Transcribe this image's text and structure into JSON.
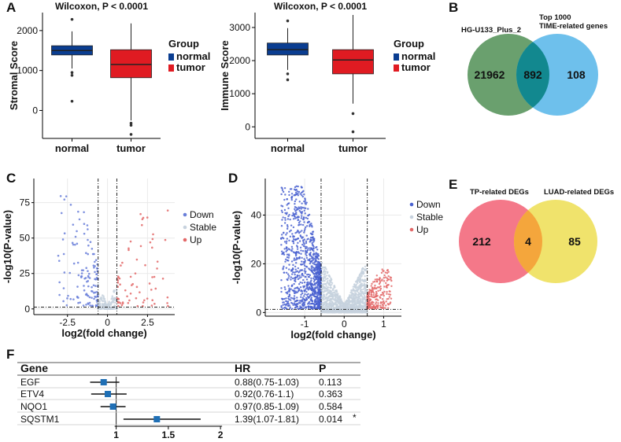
{
  "panel_letters": [
    "A",
    "B",
    "C",
    "D",
    "E",
    "F"
  ],
  "chart_data": [
    {
      "panel": "A",
      "type": "box",
      "title": "Wilcoxon, P < 0.0001",
      "ylabel": "Stromal Score",
      "categories": [
        "normal",
        "tumor"
      ],
      "ylim": [
        -700,
        2450
      ],
      "yticks": [
        0,
        1000,
        2000
      ],
      "legend_title": "Group",
      "legend": [
        "normal",
        "tumor"
      ],
      "colors": [
        "#0a3d91",
        "#e01b22"
      ],
      "boxes": [
        {
          "group": "normal",
          "whisker_low": 1050,
          "q1": 1390,
          "median": 1500,
          "q3": 1620,
          "whisker_high": 1980,
          "outliers": [
            2280,
            950,
            880,
            230
          ]
        },
        {
          "group": "tumor",
          "whisker_low": -250,
          "q1": 820,
          "median": 1150,
          "q3": 1520,
          "whisker_high": 2180,
          "outliers": [
            -320,
            -370,
            -600
          ]
        }
      ]
    },
    {
      "panel": "A",
      "type": "box",
      "title": "Wilcoxon, P < 0.0001",
      "ylabel": "Immune Score",
      "categories": [
        "normal",
        "tumor"
      ],
      "ylim": [
        -350,
        3450
      ],
      "yticks": [
        0,
        1000,
        2000,
        3000
      ],
      "legend_title": "Group",
      "legend": [
        "normal",
        "tumor"
      ],
      "colors": [
        "#0a3d91",
        "#e01b22"
      ],
      "boxes": [
        {
          "group": "normal",
          "whisker_low": 1720,
          "q1": 2170,
          "median": 2330,
          "q3": 2530,
          "whisker_high": 2980,
          "outliers": [
            3200,
            1600,
            1420
          ]
        },
        {
          "group": "tumor",
          "whisker_low": 700,
          "q1": 1600,
          "median": 2020,
          "q3": 2330,
          "whisker_high": 3380,
          "outliers": [
            400,
            -150
          ]
        }
      ]
    },
    {
      "panel": "B",
      "type": "venn",
      "sets": [
        "HG-U133_Plus_2",
        "Top 1000 TIME-related genes"
      ],
      "values": {
        "only_a": 21962,
        "overlap": 892,
        "only_b": 108
      },
      "colors": [
        "#6aa06e",
        "#6ec0ec",
        "#12888f"
      ]
    },
    {
      "panel": "C",
      "type": "scatter",
      "xlabel": "log2(fold change)",
      "ylabel": "-log10(P-value)",
      "xlim": [
        -4.6,
        4.2
      ],
      "ylim": [
        -4,
        92
      ],
      "xticks": [
        -2.5,
        0,
        2.5
      ],
      "yticks": [
        0,
        25,
        50,
        75
      ],
      "vlines": [
        -0.585,
        0.585
      ],
      "hline": 1.3,
      "legend": [
        "Down",
        "Stable",
        "Up"
      ],
      "colors": [
        "#6a7fd9",
        "#c7d2de",
        "#e36868"
      ],
      "series": [
        {
          "name": "Down",
          "x_range": [
            -3.2,
            -0.6
          ],
          "y_range": [
            2,
            83
          ],
          "n": 130
        },
        {
          "name": "Stable",
          "x_range": [
            -0.6,
            0.6
          ],
          "y_range": [
            0,
            18
          ],
          "n": 160
        },
        {
          "name": "Up",
          "x_range": [
            0.6,
            3.9
          ],
          "y_range": [
            2,
            71
          ],
          "n": 70
        }
      ]
    },
    {
      "panel": "D",
      "type": "scatter",
      "xlabel": "log2(fold change)",
      "ylabel": "-log10(P-value)",
      "xlim": [
        -2.0,
        1.45
      ],
      "ylim": [
        -1.5,
        55
      ],
      "xticks": [
        -1,
        0,
        1
      ],
      "yticks": [
        0,
        20,
        40
      ],
      "vlines": [
        -0.585,
        0.585
      ],
      "hline": 1.3,
      "legend": [
        "Down",
        "Stable",
        "Up"
      ],
      "colors": [
        "#4a62d0",
        "#c7d2de",
        "#e36868"
      ],
      "series": [
        {
          "name": "Down",
          "x_range": [
            -1.6,
            -0.585
          ],
          "y_range": [
            1.5,
            52
          ],
          "n": 1100
        },
        {
          "name": "Stable",
          "x_range": [
            -0.585,
            0.585
          ],
          "y_range": [
            0,
            22
          ],
          "n": 1500
        },
        {
          "name": "Up",
          "x_range": [
            0.585,
            1.2
          ],
          "y_range": [
            1.5,
            18
          ],
          "n": 230
        }
      ]
    },
    {
      "panel": "E",
      "type": "venn",
      "sets": [
        "TP-related DEGs",
        "LUAD-related DEGs"
      ],
      "values": {
        "only_a": 212,
        "overlap": 4,
        "only_b": 85
      },
      "colors": [
        "#f47889",
        "#f0e36c",
        "#f4a63c"
      ]
    },
    {
      "panel": "F",
      "type": "forest",
      "headers": [
        "Gene",
        "HR",
        "P"
      ],
      "xlim": [
        0.55,
        2.15
      ],
      "xticks": [
        1,
        1.5,
        2
      ],
      "ref_line": 1,
      "rows": [
        {
          "gene": "EGF",
          "hr": 0.88,
          "lo": 0.75,
          "hi": 1.03,
          "label": "0.88(0.75-1.03)",
          "p": "0.113",
          "sig": ""
        },
        {
          "gene": "ETV4",
          "hr": 0.92,
          "lo": 0.76,
          "hi": 1.1,
          "label": "0.92(0.76-1.1)",
          "p": "0.363",
          "sig": ""
        },
        {
          "gene": "NQO1",
          "hr": 0.97,
          "lo": 0.85,
          "hi": 1.09,
          "label": "0.97(0.85-1.09)",
          "p": "0.584",
          "sig": ""
        },
        {
          "gene": "SQSTM1",
          "hr": 1.39,
          "lo": 1.07,
          "hi": 1.81,
          "label": "1.39(1.07-1.81)",
          "p": "0.014",
          "sig": "*"
        }
      ],
      "color": "#1f6fb5"
    }
  ]
}
